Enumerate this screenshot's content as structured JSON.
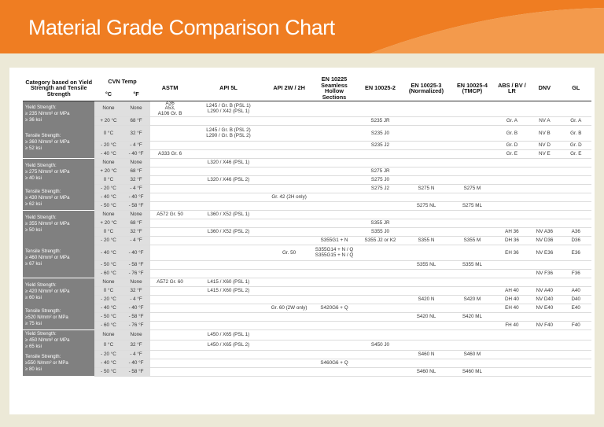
{
  "title": "Material Grade Comparison Chart",
  "colors": {
    "banner": "#ef7d22",
    "category": "#808080",
    "temp_cells": "#dfdfdf"
  },
  "headers": {
    "category": "Category based on Yield Strength and Tensile Strength",
    "cvn": "CVN Temp",
    "c": "°C",
    "f": "°F",
    "astm": "ASTM",
    "api5l": "API 5L",
    "api2w": "API 2W / 2H",
    "en10225": "EN 10225 Seamless Hollow Sections",
    "en10025_2": "EN 10025-2",
    "en10025_3": "EN 10025-3 (Normalized)",
    "en10025_4": "EN 10025-4 (TMCP)",
    "abs": "ABS / BV / LR",
    "dnv": "DNV",
    "gl": "GL"
  },
  "groups": [
    {
      "yield": [
        "Yield Strength:",
        "≥ 235 N/mm² or MPa",
        "≥ 36 ksi"
      ],
      "tensile": [
        "Tensile Strength:",
        "≥ 360 N/mm² or MPa",
        "≥ 52 ksi"
      ]
    },
    {
      "yield": [
        "Yield Strength:",
        "≥ 275 N/mm² or MPa",
        "≥ 40 ksi"
      ],
      "tensile": [
        "Tensile Strength:",
        "≥ 430 N/mm² or MPa",
        "≥ 62 ksi"
      ]
    },
    {
      "yield": [
        "Yield Strength:",
        "≥ 355 N/mm² or MPa",
        "≥ 50 ksi"
      ],
      "tensile": [
        "Tensile Strength:",
        "≥ 460 N/mm² or MPa",
        "≥ 67 ksi"
      ]
    },
    {
      "yield": [
        "Yield Strength:",
        "≥ 420 N/mm² or MPa",
        "≥ 60 ksi"
      ],
      "tensile": [
        "Tensile Strength:",
        "≥520 N/mm² or MPa",
        "≥ 75 ksi"
      ]
    },
    {
      "yield": [
        "Yield Strength:",
        "≥ 450 N/mm² or MPa",
        "≥ 65 ksi"
      ],
      "tensile": [
        "Tensile Strength:",
        "≥550 N/mm² or MPa",
        "≥ 80 ksi"
      ]
    }
  ],
  "rows": [
    [
      "None",
      "None",
      "A36\nA53,\nA106 Gr. B",
      "L245 / Gr. B (PSL 1)\nL290 / X42 (PSL 1)",
      "",
      "",
      "",
      "",
      "",
      "",
      "",
      ""
    ],
    [
      "+ 20 °C",
      "68 °F",
      "",
      "",
      "",
      "",
      "S235 JR",
      "",
      "",
      "Gr. A",
      "NV A",
      "Gr. A"
    ],
    [
      "0 °C",
      "32 °F",
      "",
      "L245 / Gr. B (PSL 2)\nL290 / Gr. B (PSL 2)",
      "",
      "",
      "S235 J0",
      "",
      "",
      "Gr. B",
      "NV B",
      "Gr. B"
    ],
    [
      "- 20 °C",
      "- 4 °F",
      "",
      "",
      "",
      "",
      "S235 J2",
      "",
      "",
      "Gr. D",
      "NV D",
      "Gr. D"
    ],
    [
      "- 40 °C",
      "- 40 °F",
      "A333 Gr. 6",
      "",
      "",
      "",
      "",
      "",
      "",
      "Gr. E",
      "NV E",
      "Gr. E"
    ],
    [
      "None",
      "None",
      "",
      "L320 / X46 (PSL 1)",
      "",
      "",
      "",
      "",
      "",
      "",
      "",
      ""
    ],
    [
      "+ 20 °C",
      "68 °F",
      "",
      "",
      "",
      "",
      "S275 JR",
      "",
      "",
      "",
      "",
      ""
    ],
    [
      "0 °C",
      "32 °F",
      "",
      "L320 / X46 (PSL 2)",
      "",
      "",
      "S275 J0",
      "",
      "",
      "",
      "",
      ""
    ],
    [
      "- 20 °C",
      "- 4 °F",
      "",
      "",
      "",
      "",
      "S275 J2",
      "S275 N",
      "S275 M",
      "",
      "",
      ""
    ],
    [
      "- 40 °C",
      "- 40 °F",
      "",
      "",
      "Gr. 42 (2H only)",
      "",
      "",
      "",
      "",
      "",
      "",
      ""
    ],
    [
      "- 50 °C",
      "- 58 °F",
      "",
      "",
      "",
      "",
      "",
      "S275 NL",
      "S275 ML",
      "",
      "",
      ""
    ],
    [
      "None",
      "None",
      "A572 Gr. 50",
      "L360 / X52 (PSL 1)",
      "",
      "",
      "",
      "",
      "",
      "",
      "",
      ""
    ],
    [
      "+ 20 °C",
      "68 °F",
      "",
      "",
      "",
      "",
      "S355 JR",
      "",
      "",
      "",
      "",
      ""
    ],
    [
      "0 °C",
      "32 °F",
      "",
      "L360 / X52 (PSL 2)",
      "",
      "",
      "S355 J0",
      "",
      "",
      "AH 36",
      "NV A36",
      "A36"
    ],
    [
      "- 20 °C",
      "- 4 °F",
      "",
      "",
      "",
      "S355G1 + N",
      "S355 J2 or K2",
      "S355 N",
      "S355 M",
      "DH 36",
      "NV D36",
      "D36"
    ],
    [
      "- 40 °C",
      "- 40 °F",
      "",
      "",
      "Gr. 50",
      "S355G14 + N / Q\nS355G15 + N / Q",
      "",
      "",
      "",
      "EH 36",
      "NV E36",
      "E36"
    ],
    [
      "- 50 °C",
      "- 58 °F",
      "",
      "",
      "",
      "",
      "",
      "S355 NL",
      "S355 ML",
      "",
      "",
      ""
    ],
    [
      "- 60 °C",
      "- 76 °F",
      "",
      "",
      "",
      "",
      "",
      "",
      "",
      "",
      "NV F36",
      "F36"
    ],
    [
      "None",
      "None",
      "A572 Gr. 60",
      "L415 / X60 (PSL 1)",
      "",
      "",
      "",
      "",
      "",
      "",
      "",
      ""
    ],
    [
      "0 °C",
      "32 °F",
      "",
      "L415 / X60 (PSL 2)",
      "",
      "",
      "",
      "",
      "",
      "AH 40",
      "NV A40",
      "A40"
    ],
    [
      "- 20 °C",
      "- 4 °F",
      "",
      "",
      "",
      "",
      "",
      "S420 N",
      "S420 M",
      "DH 40",
      "NV D40",
      "D40"
    ],
    [
      "- 40 °C",
      "- 40 °F",
      "",
      "",
      "Gr. 60 (2W only)",
      "S420G6 + Q",
      "",
      "",
      "",
      "EH 40",
      "NV E40",
      "E40"
    ],
    [
      "- 50 °C",
      "- 58 °F",
      "",
      "",
      "",
      "",
      "",
      "S420 NL",
      "S420 ML",
      "",
      "",
      ""
    ],
    [
      "- 60 °C",
      "- 76 °F",
      "",
      "",
      "",
      "",
      "",
      "",
      "",
      "FH 40",
      "NV F40",
      "F40"
    ],
    [
      "None",
      "None",
      "",
      "L450 / X65 (PSL 1)",
      "",
      "",
      "",
      "",
      "",
      "",
      "",
      ""
    ],
    [
      "0 °C",
      "32 °F",
      "",
      "L450 / X65 (PSL 2)",
      "",
      "",
      "S450 J0",
      "",
      "",
      "",
      "",
      ""
    ],
    [
      "- 20 °C",
      "- 4 °F",
      "",
      "",
      "",
      "",
      "",
      "S460 N",
      "S460 M",
      "",
      "",
      ""
    ],
    [
      "- 40 °C",
      "- 40 °F",
      "",
      "",
      "",
      "S460G6 + Q",
      "",
      "",
      "",
      "",
      "",
      ""
    ],
    [
      "- 50 °C",
      "- 58 °F",
      "",
      "",
      "",
      "",
      "",
      "S460 NL",
      "S460 ML",
      "",
      "",
      ""
    ]
  ]
}
